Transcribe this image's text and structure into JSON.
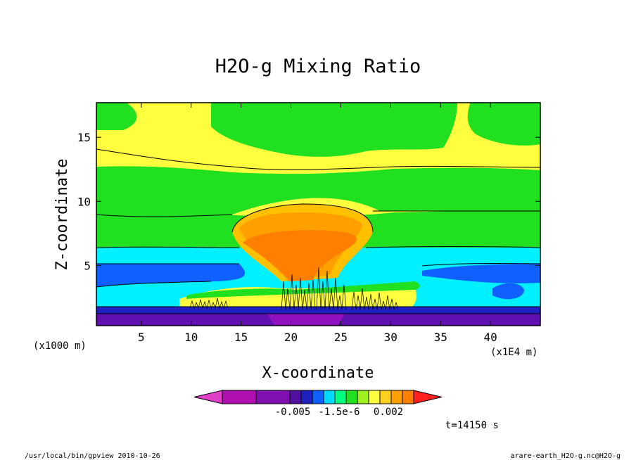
{
  "chart_data": {
    "type": "heatmap",
    "title": "H2O-g Mixing Ratio",
    "xlabel": "X-coordinate",
    "ylabel": "Z-coordinate",
    "x_unit": "(x1000 m)",
    "x_multiplier": "(x1E4 m)",
    "x_ticks": [
      5,
      10,
      15,
      20,
      25,
      30,
      35,
      40
    ],
    "y_ticks": [
      5,
      10,
      15
    ],
    "xlim": [
      0.5,
      45
    ],
    "ylim": [
      0.3,
      17.7
    ],
    "colorbar_labels": [
      "-0.005",
      "-1.5e-6",
      "0.002"
    ],
    "colorbar_colors": [
      "#e040c8",
      "#b010b0",
      "#8010b0",
      "#5010a0",
      "#2020c0",
      "#1060ff",
      "#00d8ff",
      "#00ff80",
      "#20e020",
      "#a0f020",
      "#ffff40",
      "#ffd020",
      "#ffa000",
      "#ff8000",
      "#ff2020"
    ],
    "layers": [
      {
        "level": "yellow-top",
        "color": "#ffff40"
      },
      {
        "level": "green",
        "color": "#20e020"
      },
      {
        "level": "cyan",
        "color": "#00f0ff"
      },
      {
        "level": "blue",
        "color": "#1060ff"
      },
      {
        "level": "navy",
        "color": "#2020c0"
      },
      {
        "level": "purple",
        "color": "#6010b0"
      },
      {
        "level": "light-orange",
        "color": "#ffc000"
      },
      {
        "level": "orange",
        "color": "#ff8000"
      }
    ]
  },
  "time_label": "t=14150 s",
  "footer_left": "/usr/local/bin/gpview  2010-10-26",
  "footer_right": "arare-earth_H2O-g.nc@H2O-g"
}
